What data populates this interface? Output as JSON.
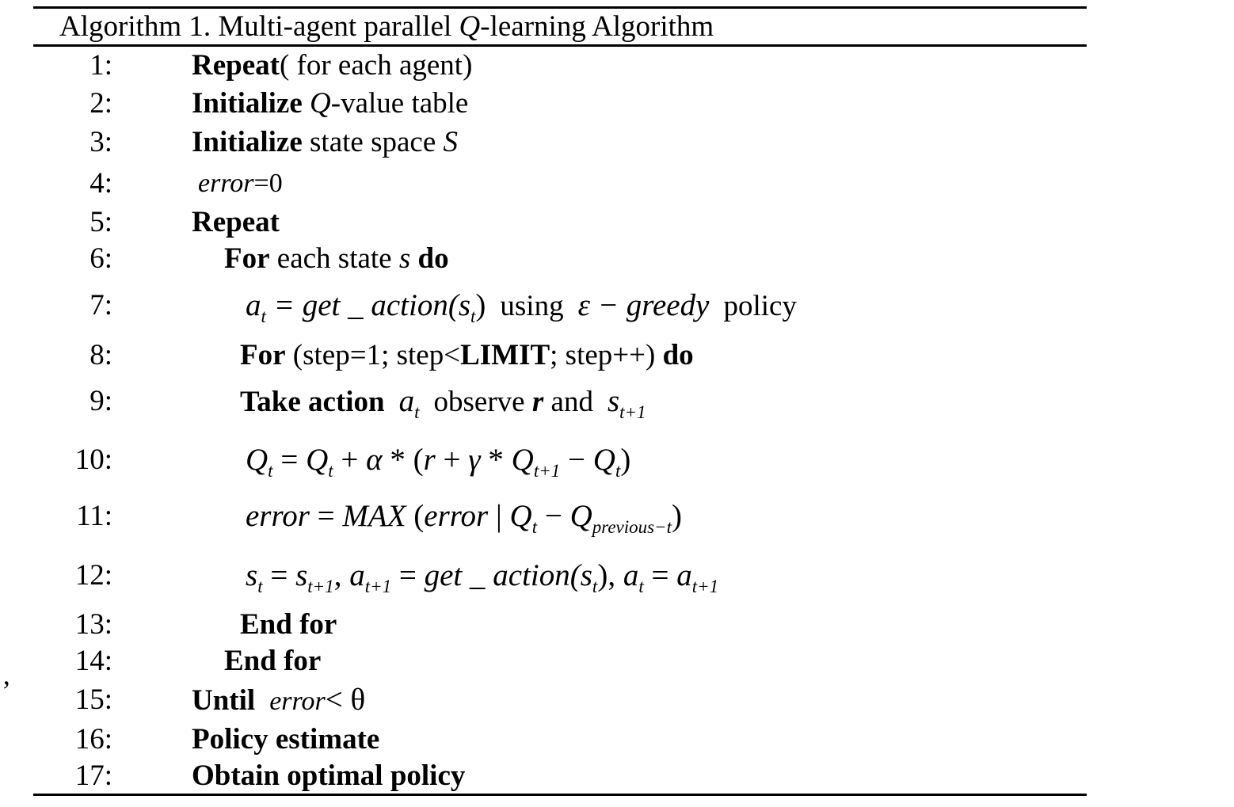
{
  "algorithm": {
    "title_prefix": "Algorithm 1. Multi-agent parallel ",
    "title_q": "Q",
    "title_suffix": "-learning Algorithm",
    "lines": [
      {
        "num": "1:",
        "kw": "Repeat",
        "text": "( for each agent)"
      },
      {
        "num": "2:",
        "kw": "Initialize",
        "q": "Q",
        "text": "-value table"
      },
      {
        "num": "3:",
        "kw": "Initialize",
        "text": "state space",
        "var": "S"
      },
      {
        "num": "4:",
        "var": "error",
        "text": "=0"
      },
      {
        "num": "5:",
        "kw": "Repeat"
      },
      {
        "num": "6:",
        "kw": "For",
        "text": "each state",
        "var": "s",
        "kw2": "do"
      },
      {
        "num": "7:",
        "formula_a": "a",
        "formula_sub": "t",
        "formula_eq": " = get _ action(s",
        "formula_sub2": "t",
        "formula_close": ")",
        "text": "using",
        "eps": "ε − greedy",
        "text2": "policy"
      },
      {
        "num": "8:",
        "kw": "For",
        "text": "(step=1; step<",
        "kw2": "LIMIT",
        "text2": "; step++)",
        "kw3": "do"
      },
      {
        "num": "9:",
        "kw": "Take action",
        "a": "a",
        "a_sub": "t",
        "text": "observe",
        "r": "r",
        "text2": "and",
        "s": "s",
        "s_sub": "t+1"
      },
      {
        "num": "10:",
        "formula": "Q_t = Q_t + α * (r + γ * Q_t+1 − Q_t)"
      },
      {
        "num": "11:",
        "formula": "error = MAX (error | Q_t − Q_previous−t)"
      },
      {
        "num": "12:",
        "formula": "s_t = s_t+1, a_t+1 = get _ action(s_t), a_t = a_t+1"
      },
      {
        "num": "13:",
        "kw": "End for"
      },
      {
        "num": "14:",
        "kw": "End for"
      },
      {
        "num": "15:",
        "kw": "Until",
        "var": "error",
        "text": "< θ"
      },
      {
        "num": "16:",
        "kw": "Policy estimate"
      },
      {
        "num": "17:",
        "kw": "Obtain optimal policy"
      }
    ],
    "f10": {
      "Q": "Q",
      "t": "t",
      "eq": " = ",
      "plus": " + ",
      "alpha": "α",
      "star": " * (",
      "r": "r",
      "gamma": "γ",
      "star2": " * ",
      "t1": "t+1",
      "minus": " − ",
      "close": ")"
    },
    "f11": {
      "error": "error",
      "eq": " = ",
      "max": "MAX",
      "open": " (",
      "bar": " | ",
      "Q": "Q",
      "t": "t",
      "minus": " − ",
      "prev": "previous−t",
      "close": ")"
    },
    "f12": {
      "s": "s",
      "a": "a",
      "t": "t",
      "t1": "t+1",
      "eq": " = ",
      "comma": ", ",
      "get": "get _ action(",
      "close": ")"
    }
  },
  "margin": {
    "mark": "’"
  }
}
